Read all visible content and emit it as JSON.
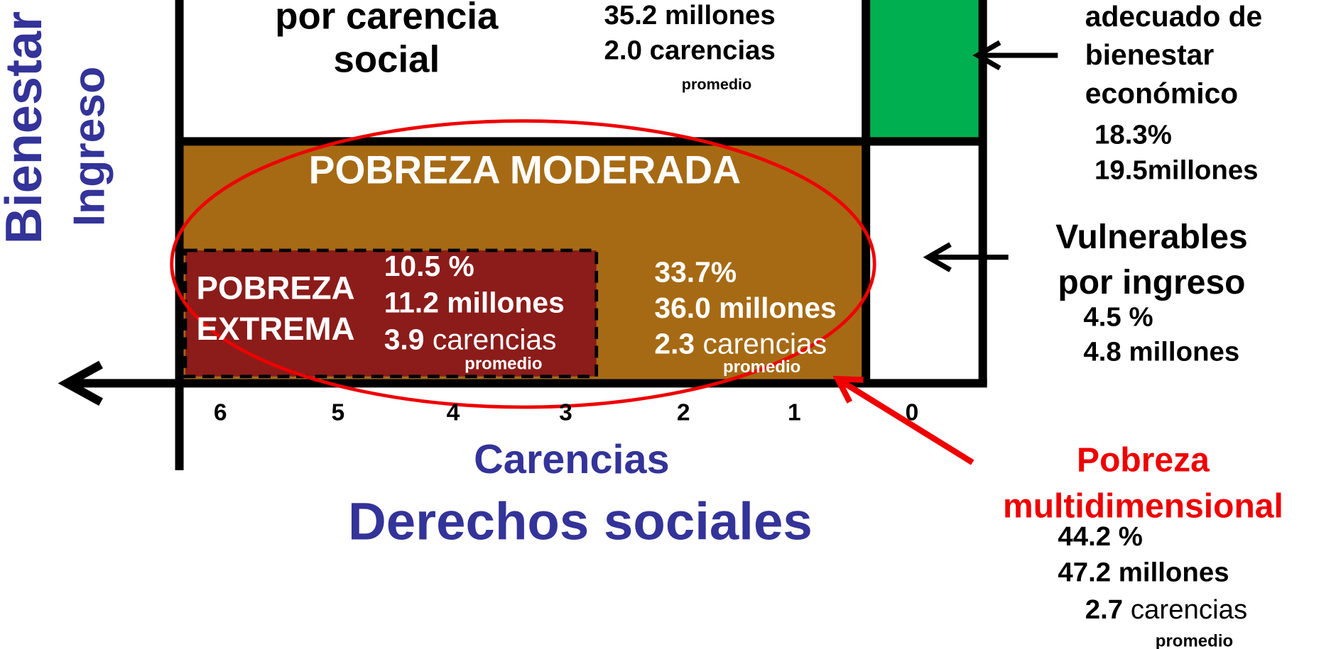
{
  "y_axis": {
    "outer": "Bienestar",
    "inner": "Ingreso"
  },
  "carencia_social": {
    "label": [
      "por carencia",
      "social"
    ],
    "millones": "35.2 millones",
    "carencias": "2.0 carencias",
    "promedio": "promedio"
  },
  "bienestar": {
    "label": [
      "adecuado de",
      "bienestar",
      "económico"
    ],
    "percent": "18.3%",
    "millones": "19.5millones"
  },
  "moderada": {
    "title": "POBREZA MODERADA",
    "percent": "33.7%",
    "millones": "36.0 millones",
    "carencias_num": "2.3",
    "carencias": "carencias",
    "promedio": "promedio"
  },
  "extrema": {
    "label": [
      "POBREZA",
      "EXTREMA"
    ],
    "percent": "10.5 %",
    "millones": "11.2 millones",
    "carencias_num": "3.9",
    "carencias": "carencias",
    "promedio": "promedio"
  },
  "vulnerables_ingreso": {
    "label": [
      "Vulnerables",
      "por ingreso"
    ],
    "percent": "4.5 %",
    "millones": "4.8 millones"
  },
  "x_axis": {
    "ticks": [
      "6",
      "5",
      "4",
      "3",
      "2",
      "1",
      "0"
    ],
    "label": "Carencias",
    "sublabel": "Derechos sociales"
  },
  "multidimensional": {
    "label": [
      "Pobreza",
      "multidimensional"
    ],
    "percent": "44.2 %",
    "millones": "47.2 millones",
    "carencias_num": "2.7",
    "carencias": "carencias",
    "promedio": "promedio"
  }
}
